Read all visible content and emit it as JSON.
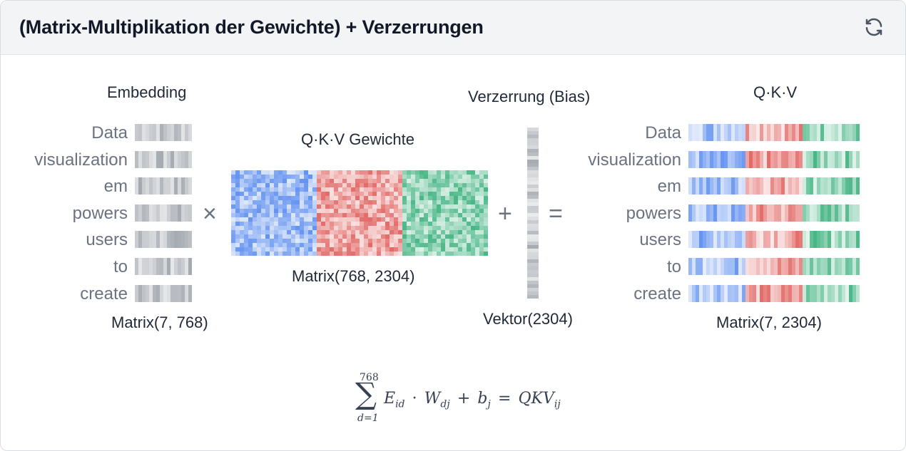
{
  "header": {
    "title": "(Matrix-Multiplikation der Gewichte) + Verzerrungen",
    "refresh_icon": "refresh-icon"
  },
  "embedding": {
    "title": "Embedding",
    "tokens": [
      "Data",
      "visualization",
      "em",
      "powers",
      "users",
      "to",
      "create"
    ],
    "shape": "Matrix(7, 768)"
  },
  "operators": {
    "times": "×",
    "plus": "+",
    "equals": "="
  },
  "weights": {
    "title": "Q·K·V Gewichte",
    "shape": "Matrix(768, 2304)"
  },
  "bias": {
    "title": "Verzerrung (Bias)",
    "shape": "Vektor(2304)"
  },
  "output": {
    "title": "Q·K·V",
    "tokens": [
      "Data",
      "visualization",
      "em",
      "powers",
      "users",
      "to",
      "create"
    ],
    "shape": "Matrix(7, 2304)"
  },
  "formula": {
    "upper": "768",
    "lower": "d=1",
    "sum": "∑",
    "e": "E",
    "e_sub": "id",
    "dot": "·",
    "w": "W",
    "w_sub": "dj",
    "plus": "+",
    "b": "b",
    "b_sub": "j",
    "eq": "=",
    "qkv": "QKV",
    "qkv_sub": "ij"
  },
  "colors": {
    "query": "#5b8def",
    "key": "#e0625f",
    "value": "#3fb27f",
    "gray": "#9aa0a8"
  }
}
